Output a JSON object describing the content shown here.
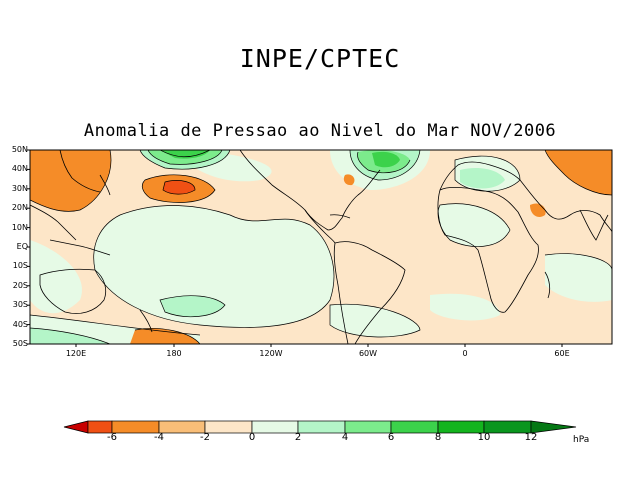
{
  "header": {
    "title": "INPE/CPTEC"
  },
  "map": {
    "title": "Anomalia de Pressao ao Nivel do Mar NOV/2006",
    "lat_labels": [
      "50N",
      "40N",
      "30N",
      "20N",
      "10N",
      "EQ",
      "10S",
      "20S",
      "30S",
      "40S",
      "50S"
    ],
    "lon_labels": [
      "120E",
      "180",
      "120W",
      "60W",
      "0",
      "60E"
    ]
  },
  "colorbar": {
    "labels": [
      "-6",
      "-4",
      "-2",
      "0",
      "2",
      "4",
      "6",
      "8",
      "10",
      "12"
    ],
    "unit": "hPa",
    "colors": [
      "#c80000",
      "#f05014",
      "#f58c28",
      "#f9be78",
      "#fde6c8",
      "#e6fae6",
      "#b4f5c8",
      "#7ceb8c",
      "#3cd24b",
      "#14b41e",
      "#0a961e",
      "#057814"
    ]
  },
  "colors": {
    "coast": "#000000",
    "contour": "#000000"
  }
}
